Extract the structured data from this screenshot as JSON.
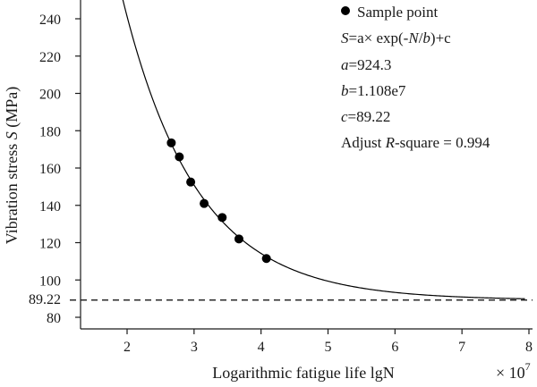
{
  "chart_data": {
    "type": "scatter",
    "xlabel": "Logarithmic fatigue life lgN",
    "x_multiplier": "× 10",
    "x_multiplier_exp": "7",
    "ylabel_prefix": "Vibration stress ",
    "ylabel_var": "S",
    "ylabel_suffix": " (MPa)",
    "xlim": [
      1.3,
      8
    ],
    "ylim": [
      75,
      250
    ],
    "x_ticks": [
      "2",
      "3",
      "4",
      "5",
      "6",
      "7",
      "8"
    ],
    "y_ticks": [
      "80",
      "100",
      "120",
      "140",
      "160",
      "180",
      "200",
      "220",
      "240"
    ],
    "points": [
      {
        "x": 2.66,
        "y": 173.5
      },
      {
        "x": 2.78,
        "y": 166.0
      },
      {
        "x": 2.95,
        "y": 152.5
      },
      {
        "x": 3.15,
        "y": 141.0
      },
      {
        "x": 3.42,
        "y": 133.5
      },
      {
        "x": 3.67,
        "y": 122.0
      },
      {
        "x": 4.08,
        "y": 111.5
      }
    ],
    "fit": {
      "a": 924.3,
      "b": 1.108,
      "c": 89.22
    },
    "asymptote": {
      "value": 89.22,
      "label": "89.22",
      "style": "dashed"
    },
    "legend": {
      "marker_label": "Sample point",
      "equation": {
        "S": "S",
        "eq1": "=a× exp(-",
        "N": "N",
        "slash": "/",
        "b": "b",
        "tail": ")+c"
      },
      "params": [
        {
          "var": "a",
          "value": "=924.3"
        },
        {
          "var": "b",
          "value": "=1.108e7"
        },
        {
          "var": "c",
          "value": "=89.22"
        }
      ],
      "rsq": {
        "pre": "Adjust ",
        "var": "R",
        "post": "-square = 0.994"
      }
    },
    "colors": {
      "point": "#000000",
      "curve": "#000000",
      "axis": "#1a1a1a"
    }
  }
}
